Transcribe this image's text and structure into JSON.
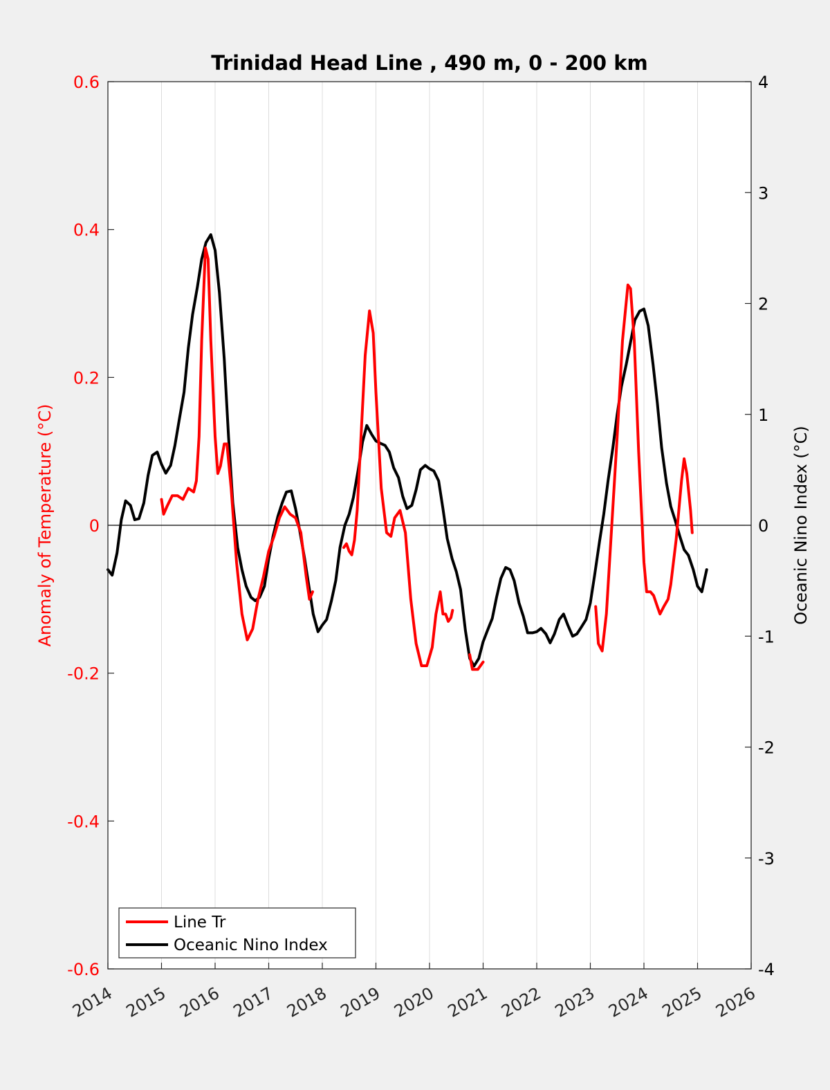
{
  "chart_data": {
    "type": "line",
    "title": "Trinidad Head Line , 490 m, 0 - 200 km",
    "xlim": [
      2014,
      2026
    ],
    "x_ticks": [
      "2014",
      "2015",
      "2016",
      "2017",
      "2018",
      "2019",
      "2020",
      "2021",
      "2022",
      "2023",
      "2024",
      "2025",
      "2026"
    ],
    "left_axis": {
      "label": "Anomaly of Temperature (°C)",
      "ylim": [
        -0.6,
        0.6
      ],
      "ticks": [
        "0.6",
        "0.4",
        "0.2",
        "0",
        "-0.2",
        "-0.4",
        "-0.6"
      ],
      "color": "#ff0000"
    },
    "right_axis": {
      "label": "Oceanic Nino Index (°C)",
      "ylim": [
        -4,
        4
      ],
      "ticks": [
        "4",
        "3",
        "2",
        "1",
        "0",
        "-1",
        "-2",
        "-3",
        "-4"
      ],
      "color": "#000000"
    },
    "grid": "vertical",
    "legend": "bottom-left",
    "series": [
      {
        "name": "Line Tr",
        "axis": "left",
        "color": "#ff0000",
        "segments": [
          [
            [
              2015.0,
              0.035
            ],
            [
              2015.04,
              0.015
            ],
            [
              2015.1,
              0.025
            ],
            [
              2015.2,
              0.04
            ],
            [
              2015.3,
              0.04
            ],
            [
              2015.4,
              0.035
            ],
            [
              2015.5,
              0.05
            ],
            [
              2015.6,
              0.045
            ],
            [
              2015.65,
              0.06
            ],
            [
              2015.7,
              0.12
            ],
            [
              2015.75,
              0.25
            ],
            [
              2015.82,
              0.375
            ],
            [
              2015.87,
              0.36
            ],
            [
              2015.92,
              0.25
            ],
            [
              2016.0,
              0.12
            ],
            [
              2016.05,
              0.07
            ],
            [
              2016.1,
              0.08
            ],
            [
              2016.17,
              0.11
            ],
            [
              2016.22,
              0.11
            ],
            [
              2016.3,
              0.05
            ],
            [
              2016.4,
              -0.05
            ],
            [
              2016.5,
              -0.12
            ],
            [
              2016.6,
              -0.155
            ],
            [
              2016.7,
              -0.14
            ],
            [
              2016.8,
              -0.1
            ],
            [
              2016.9,
              -0.07
            ],
            [
              2017.0,
              -0.035
            ],
            [
              2017.1,
              -0.015
            ],
            [
              2017.2,
              0.01
            ],
            [
              2017.3,
              0.025
            ],
            [
              2017.4,
              0.015
            ],
            [
              2017.5,
              0.01
            ],
            [
              2017.6,
              -0.01
            ],
            [
              2017.7,
              -0.07
            ],
            [
              2017.76,
              -0.1
            ],
            [
              2017.82,
              -0.09
            ]
          ],
          [
            [
              2018.4,
              -0.03
            ],
            [
              2018.45,
              -0.025
            ],
            [
              2018.5,
              -0.035
            ],
            [
              2018.55,
              -0.04
            ],
            [
              2018.6,
              -0.02
            ],
            [
              2018.65,
              0.02
            ],
            [
              2018.7,
              0.09
            ],
            [
              2018.8,
              0.23
            ],
            [
              2018.88,
              0.29
            ],
            [
              2018.95,
              0.26
            ],
            [
              2019.0,
              0.18
            ],
            [
              2019.1,
              0.05
            ],
            [
              2019.2,
              -0.01
            ],
            [
              2019.28,
              -0.015
            ],
            [
              2019.35,
              0.01
            ],
            [
              2019.45,
              0.02
            ],
            [
              2019.55,
              -0.01
            ],
            [
              2019.65,
              -0.1
            ],
            [
              2019.75,
              -0.16
            ],
            [
              2019.85,
              -0.19
            ],
            [
              2019.95,
              -0.19
            ],
            [
              2020.05,
              -0.165
            ],
            [
              2020.12,
              -0.12
            ],
            [
              2020.2,
              -0.09
            ],
            [
              2020.25,
              -0.12
            ],
            [
              2020.3,
              -0.12
            ],
            [
              2020.35,
              -0.13
            ],
            [
              2020.4,
              -0.125
            ],
            [
              2020.43,
              -0.115
            ]
          ],
          [
            [
              2020.75,
              -0.175
            ],
            [
              2020.8,
              -0.195
            ],
            [
              2020.9,
              -0.195
            ],
            [
              2021.0,
              -0.185
            ]
          ],
          [
            [
              2023.1,
              -0.11
            ],
            [
              2023.15,
              -0.16
            ],
            [
              2023.22,
              -0.17
            ],
            [
              2023.3,
              -0.12
            ],
            [
              2023.4,
              0.0
            ],
            [
              2023.5,
              0.12
            ],
            [
              2023.6,
              0.25
            ],
            [
              2023.7,
              0.325
            ],
            [
              2023.75,
              0.32
            ],
            [
              2023.82,
              0.25
            ],
            [
              2023.9,
              0.1
            ],
            [
              2024.0,
              -0.05
            ],
            [
              2024.05,
              -0.09
            ],
            [
              2024.12,
              -0.09
            ],
            [
              2024.18,
              -0.095
            ],
            [
              2024.25,
              -0.11
            ],
            [
              2024.3,
              -0.12
            ],
            [
              2024.37,
              -0.11
            ],
            [
              2024.45,
              -0.1
            ],
            [
              2024.5,
              -0.08
            ],
            [
              2024.6,
              -0.02
            ],
            [
              2024.7,
              0.06
            ],
            [
              2024.75,
              0.09
            ],
            [
              2024.8,
              0.07
            ],
            [
              2024.87,
              0.02
            ],
            [
              2024.9,
              -0.01
            ]
          ]
        ]
      },
      {
        "name": "Oceanic Nino Index",
        "axis": "right",
        "color": "#000000",
        "segments": [
          [
            [
              2014.0,
              -0.4
            ],
            [
              2014.08,
              -0.45
            ],
            [
              2014.17,
              -0.25
            ],
            [
              2014.25,
              0.05
            ],
            [
              2014.33,
              0.22
            ],
            [
              2014.42,
              0.18
            ],
            [
              2014.5,
              0.05
            ],
            [
              2014.58,
              0.06
            ],
            [
              2014.67,
              0.2
            ],
            [
              2014.75,
              0.45
            ],
            [
              2014.83,
              0.63
            ],
            [
              2014.92,
              0.66
            ],
            [
              2015.0,
              0.55
            ],
            [
              2015.08,
              0.47
            ],
            [
              2015.17,
              0.54
            ],
            [
              2015.25,
              0.72
            ],
            [
              2015.33,
              0.95
            ],
            [
              2015.42,
              1.2
            ],
            [
              2015.5,
              1.6
            ],
            [
              2015.58,
              1.9
            ],
            [
              2015.67,
              2.15
            ],
            [
              2015.75,
              2.4
            ],
            [
              2015.83,
              2.55
            ],
            [
              2015.92,
              2.62
            ],
            [
              2016.0,
              2.48
            ],
            [
              2016.08,
              2.1
            ],
            [
              2016.17,
              1.5
            ],
            [
              2016.25,
              0.8
            ],
            [
              2016.33,
              0.2
            ],
            [
              2016.42,
              -0.2
            ],
            [
              2016.5,
              -0.4
            ],
            [
              2016.58,
              -0.55
            ],
            [
              2016.67,
              -0.65
            ],
            [
              2016.75,
              -0.68
            ],
            [
              2016.83,
              -0.65
            ],
            [
              2016.92,
              -0.55
            ],
            [
              2017.0,
              -0.3
            ],
            [
              2017.08,
              -0.1
            ],
            [
              2017.17,
              0.08
            ],
            [
              2017.25,
              0.2
            ],
            [
              2017.33,
              0.3
            ],
            [
              2017.42,
              0.31
            ],
            [
              2017.5,
              0.15
            ],
            [
              2017.58,
              -0.05
            ],
            [
              2017.67,
              -0.3
            ],
            [
              2017.75,
              -0.55
            ],
            [
              2017.83,
              -0.8
            ],
            [
              2017.92,
              -0.96
            ],
            [
              2018.0,
              -0.9
            ],
            [
              2018.08,
              -0.85
            ],
            [
              2018.17,
              -0.68
            ],
            [
              2018.25,
              -0.5
            ],
            [
              2018.33,
              -0.2
            ],
            [
              2018.42,
              0.0
            ],
            [
              2018.5,
              0.1
            ],
            [
              2018.58,
              0.25
            ],
            [
              2018.67,
              0.5
            ],
            [
              2018.75,
              0.75
            ],
            [
              2018.83,
              0.9
            ],
            [
              2018.92,
              0.82
            ],
            [
              2019.0,
              0.76
            ],
            [
              2019.08,
              0.74
            ],
            [
              2019.17,
              0.72
            ],
            [
              2019.25,
              0.66
            ],
            [
              2019.33,
              0.52
            ],
            [
              2019.42,
              0.43
            ],
            [
              2019.5,
              0.26
            ],
            [
              2019.58,
              0.15
            ],
            [
              2019.67,
              0.18
            ],
            [
              2019.75,
              0.32
            ],
            [
              2019.83,
              0.5
            ],
            [
              2019.92,
              0.54
            ],
            [
              2020.0,
              0.51
            ],
            [
              2020.08,
              0.49
            ],
            [
              2020.17,
              0.4
            ],
            [
              2020.25,
              0.15
            ],
            [
              2020.33,
              -0.12
            ],
            [
              2020.42,
              -0.3
            ],
            [
              2020.5,
              -0.42
            ],
            [
              2020.58,
              -0.58
            ],
            [
              2020.67,
              -0.95
            ],
            [
              2020.75,
              -1.2
            ],
            [
              2020.83,
              -1.27
            ],
            [
              2020.92,
              -1.2
            ],
            [
              2021.0,
              -1.05
            ],
            [
              2021.08,
              -0.95
            ],
            [
              2021.17,
              -0.84
            ],
            [
              2021.25,
              -0.65
            ],
            [
              2021.33,
              -0.48
            ],
            [
              2021.42,
              -0.38
            ],
            [
              2021.5,
              -0.4
            ],
            [
              2021.58,
              -0.5
            ],
            [
              2021.67,
              -0.7
            ],
            [
              2021.75,
              -0.82
            ],
            [
              2021.83,
              -0.97
            ],
            [
              2021.92,
              -0.97
            ],
            [
              2022.0,
              -0.96
            ],
            [
              2022.08,
              -0.93
            ],
            [
              2022.17,
              -0.98
            ],
            [
              2022.25,
              -1.06
            ],
            [
              2022.33,
              -0.98
            ],
            [
              2022.42,
              -0.85
            ],
            [
              2022.5,
              -0.8
            ],
            [
              2022.58,
              -0.9
            ],
            [
              2022.67,
              -1.0
            ],
            [
              2022.75,
              -0.98
            ],
            [
              2022.83,
              -0.92
            ],
            [
              2022.92,
              -0.85
            ],
            [
              2023.0,
              -0.7
            ],
            [
              2023.08,
              -0.45
            ],
            [
              2023.17,
              -0.15
            ],
            [
              2023.25,
              0.1
            ],
            [
              2023.33,
              0.4
            ],
            [
              2023.42,
              0.7
            ],
            [
              2023.5,
              1.0
            ],
            [
              2023.58,
              1.25
            ],
            [
              2023.67,
              1.45
            ],
            [
              2023.75,
              1.65
            ],
            [
              2023.83,
              1.85
            ],
            [
              2023.92,
              1.93
            ],
            [
              2024.0,
              1.95
            ],
            [
              2024.08,
              1.8
            ],
            [
              2024.17,
              1.45
            ],
            [
              2024.25,
              1.1
            ],
            [
              2024.33,
              0.7
            ],
            [
              2024.42,
              0.38
            ],
            [
              2024.5,
              0.17
            ],
            [
              2024.58,
              0.05
            ],
            [
              2024.67,
              -0.1
            ],
            [
              2024.75,
              -0.22
            ],
            [
              2024.83,
              -0.27
            ],
            [
              2024.92,
              -0.4
            ],
            [
              2025.0,
              -0.55
            ],
            [
              2025.08,
              -0.6
            ],
            [
              2025.17,
              -0.4
            ]
          ]
        ]
      }
    ]
  }
}
